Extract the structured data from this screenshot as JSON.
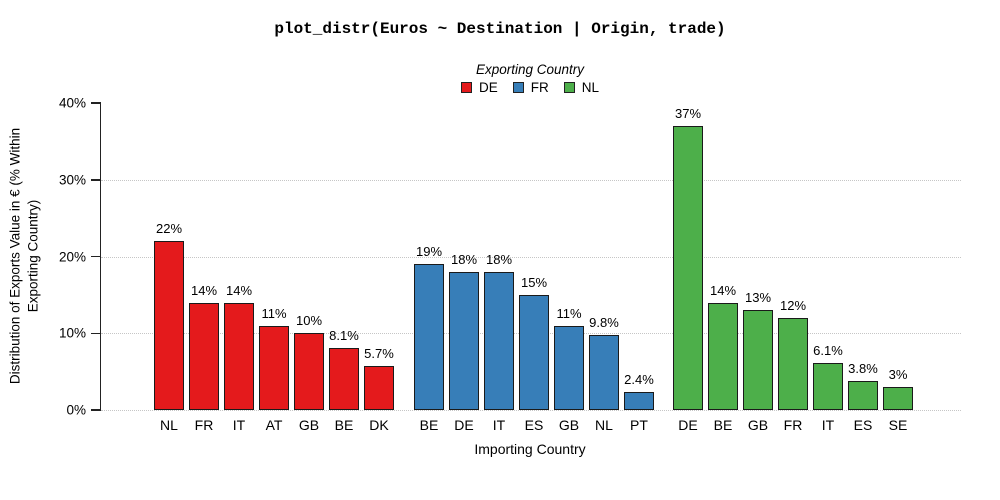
{
  "chart_data": {
    "type": "bar",
    "title": "plot_distr(Euros ~ Destination | Origin, trade)",
    "xlabel": "Importing Country",
    "ylabel": "Distribution of Exports Value in € (% Within Exporting Country)",
    "ylabel_lines": {
      "line1": "Distribution of Exports Value in € (% Within",
      "line2": "Exporting Country)"
    },
    "legend_title": "Exporting Country",
    "legend_position": "top",
    "grid": "dotted horizontal at 0%,10%,20%,30%",
    "ylim": [
      0,
      40
    ],
    "yticks": [
      {
        "value": 0,
        "label": "0%",
        "gridline": true
      },
      {
        "value": 10,
        "label": "10%",
        "gridline": true
      },
      {
        "value": 20,
        "label": "20%",
        "gridline": true
      },
      {
        "value": 30,
        "label": "30%",
        "gridline": true
      },
      {
        "value": 40,
        "label": "40%",
        "gridline": false
      }
    ],
    "groups": [
      {
        "name": "DE",
        "color": "#e41a1c",
        "categories": [
          "NL",
          "FR",
          "IT",
          "AT",
          "GB",
          "BE",
          "DK"
        ],
        "values": [
          22,
          14,
          14,
          11,
          10,
          8.1,
          5.7
        ],
        "labels": [
          "22%",
          "14%",
          "14%",
          "11%",
          "10%",
          "8.1%",
          "5.7%"
        ]
      },
      {
        "name": "FR",
        "color": "#377eb8",
        "categories": [
          "BE",
          "DE",
          "IT",
          "ES",
          "GB",
          "NL",
          "PT"
        ],
        "values": [
          19,
          18,
          18,
          15,
          11,
          9.8,
          2.4
        ],
        "labels": [
          "19%",
          "18%",
          "18%",
          "15%",
          "11%",
          "9.8%",
          "2.4%"
        ]
      },
      {
        "name": "NL",
        "color": "#4daf4a",
        "categories": [
          "DE",
          "BE",
          "GB",
          "FR",
          "IT",
          "ES",
          "SE"
        ],
        "values": [
          37,
          14,
          13,
          12,
          6.1,
          3.8,
          3
        ],
        "labels": [
          "37%",
          "14%",
          "13%",
          "12%",
          "6.1%",
          "3.8%",
          "3%"
        ]
      }
    ],
    "colors": {
      "bar_border": "#1a1a1a",
      "axis": "#222222",
      "gridline": "#c6c6c6",
      "text": "#000000"
    }
  }
}
